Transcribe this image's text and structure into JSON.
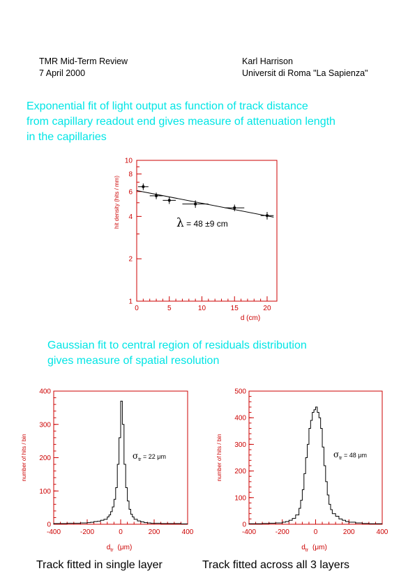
{
  "header": {
    "left_line1": "TMR Mid-Term Review",
    "left_line2": "7 April 2000",
    "right_line1": "Karl Harrison",
    "right_line2": "Universit  di Roma  \"La Sapienza\""
  },
  "section1": {
    "line1": "Exponential fit of light output as function of track distance",
    "line2": "from capillary readout end gives measure of attenuation length",
    "line3": "in the capillaries"
  },
  "section2": {
    "line1": "Gaussian fit to central region of residuals distribution",
    "line2": "gives measure of spatial resolution"
  },
  "captions": {
    "left": "Track fitted in single layer",
    "right": "Track fitted across all 3 layers"
  },
  "colors": {
    "frame": "#cc0000",
    "cyan_text": "#00e5e5"
  },
  "chart_data": [
    {
      "type": "scatter",
      "title": "",
      "xlabel": "d    (cm)",
      "ylabel": "hit density   (hits / mm)",
      "xlim": [
        0,
        21.5
      ],
      "ylim": [
        1,
        10
      ],
      "y_scale": "log",
      "x_ticks": [
        "0",
        "5",
        "10",
        "15",
        "20"
      ],
      "y_ticks": [
        "1",
        "2",
        "4",
        "6",
        "8",
        "10"
      ],
      "annotation": {
        "symbol": "λ",
        "text": " = 48 ±9 cm"
      },
      "points": [
        {
          "x": 1,
          "y": 6.5,
          "xerr": 0.8,
          "yerr": 0.35
        },
        {
          "x": 3,
          "y": 5.6,
          "xerr": 1.0,
          "yerr": 0.3
        },
        {
          "x": 5,
          "y": 5.2,
          "xerr": 1.0,
          "yerr": 0.3
        },
        {
          "x": 9,
          "y": 4.9,
          "xerr": 2.0,
          "yerr": 0.3
        },
        {
          "x": 15,
          "y": 4.6,
          "xerr": 1.5,
          "yerr": 0.25
        },
        {
          "x": 20,
          "y": 4.05,
          "xerr": 1.0,
          "yerr": 0.25
        }
      ],
      "fit_line": {
        "x": [
          0,
          21
        ],
        "y": [
          6.1,
          3.95
        ]
      }
    },
    {
      "type": "line",
      "title": "",
      "xlabel_main": "d",
      "xlabel_sub": "tr",
      "xlabel_units": "(μm)",
      "ylabel": "number of hits / bin",
      "xlim": [
        -400,
        400
      ],
      "ylim": [
        0,
        400
      ],
      "x_ticks": [
        "-400",
        "-200",
        "0",
        "200",
        "400"
      ],
      "y_ticks": [
        "0",
        "100",
        "200",
        "300",
        "400"
      ],
      "annotation": {
        "symbol": "σ",
        "sub": "tr",
        "text": " = 22 μm"
      },
      "series": [
        {
          "x": [
            -400,
            -360,
            -320,
            -280,
            -240,
            -200,
            -180,
            -160,
            -140,
            -120,
            -100,
            -80,
            -70,
            -60,
            -50,
            -40,
            -30,
            -20,
            -10,
            0,
            10,
            20,
            30,
            40,
            50,
            60,
            70,
            80,
            100,
            120,
            140,
            160,
            180,
            200,
            240,
            280,
            320,
            360,
            400
          ],
          "y": [
            2,
            2,
            3,
            3,
            4,
            5,
            6,
            8,
            9,
            12,
            15,
            22,
            28,
            38,
            52,
            75,
            110,
            180,
            260,
            370,
            300,
            180,
            110,
            70,
            45,
            30,
            22,
            15,
            10,
            7,
            5,
            4,
            3,
            3,
            2,
            2,
            2,
            1,
            1
          ]
        }
      ]
    },
    {
      "type": "line",
      "title": "",
      "xlabel_main": "d",
      "xlabel_sub": "tr",
      "xlabel_units": "(μm)",
      "ylabel": "number of hits / bin",
      "xlim": [
        -400,
        400
      ],
      "ylim": [
        0,
        500
      ],
      "x_ticks": [
        "-400",
        "-200",
        "0",
        "200",
        "400"
      ],
      "y_ticks": [
        "0",
        "100",
        "200",
        "300",
        "400",
        "500"
      ],
      "annotation": {
        "symbol": "σ",
        "sub": "tr",
        "text": " = 48 μm"
      },
      "series": [
        {
          "x": [
            -400,
            -360,
            -320,
            -280,
            -240,
            -200,
            -180,
            -160,
            -140,
            -120,
            -100,
            -90,
            -80,
            -70,
            -60,
            -50,
            -40,
            -30,
            -20,
            -10,
            0,
            10,
            20,
            30,
            40,
            50,
            60,
            70,
            80,
            90,
            100,
            120,
            140,
            160,
            180,
            200,
            240,
            280,
            320,
            360,
            400
          ],
          "y": [
            2,
            2,
            3,
            4,
            5,
            8,
            10,
            15,
            22,
            35,
            60,
            90,
            130,
            190,
            250,
            300,
            360,
            390,
            420,
            430,
            440,
            420,
            400,
            360,
            290,
            220,
            160,
            110,
            75,
            55,
            40,
            30,
            20,
            15,
            10,
            8,
            5,
            3,
            2,
            2,
            1
          ]
        }
      ]
    }
  ]
}
